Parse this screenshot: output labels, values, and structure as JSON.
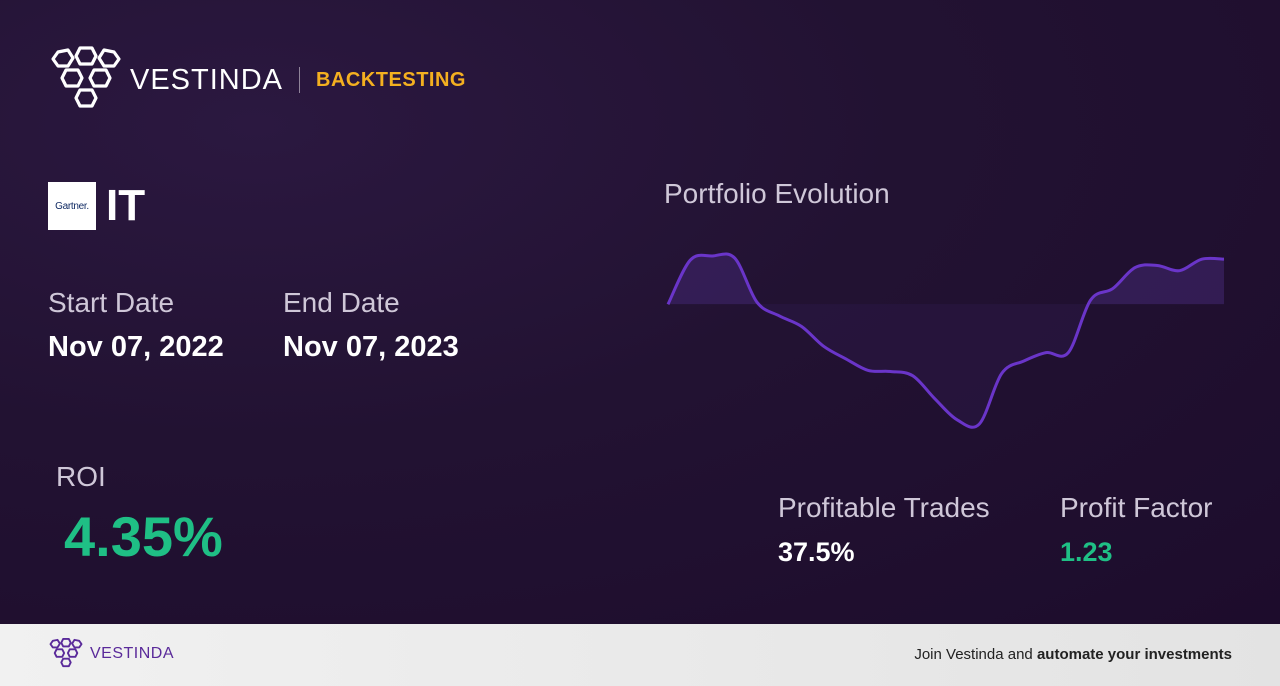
{
  "header": {
    "brand": "VESTINDA",
    "section": "BACKTESTING",
    "logo_icon": "hexagon-cluster-icon"
  },
  "asset": {
    "logo_text": "Gartner.",
    "symbol": "IT"
  },
  "dates": {
    "start_label": "Start Date",
    "start_value": "Nov 07, 2022",
    "end_label": "End Date",
    "end_value": "Nov 07, 2023"
  },
  "roi": {
    "label": "ROI",
    "value": "4.35%"
  },
  "chart": {
    "title": "Portfolio Evolution"
  },
  "chart_data": {
    "type": "area",
    "title": "Portfolio Evolution",
    "baseline": 0,
    "series": [
      {
        "values": [
          0,
          4.2,
          4.6,
          4.4,
          0.2,
          -1.1,
          -2.1,
          -4.0,
          -5.2,
          -6.3,
          -6.4,
          -6.8,
          -9.0,
          -11.0,
          -11.4,
          -6.6,
          -5.4,
          -4.6,
          -4.6,
          0.4,
          1.5,
          3.5,
          3.7,
          3.2,
          4.3,
          4.3
        ]
      }
    ],
    "colors": {
      "line": "#6a35c9",
      "fill": "#3a2260"
    }
  },
  "stats": {
    "profitable_trades_label": "Profitable Trades",
    "profitable_trades_value": "37.5%",
    "profit_factor_label": "Profit Factor",
    "profit_factor_value": "1.23"
  },
  "footer": {
    "brand": "VESTINDA",
    "cta_prefix": "Join Vestinda and ",
    "cta_bold": "automate your investments"
  },
  "colors": {
    "accent_gold": "#f4b020",
    "positive_green": "#1fbf85",
    "brand_purple": "#5a2a9a"
  }
}
